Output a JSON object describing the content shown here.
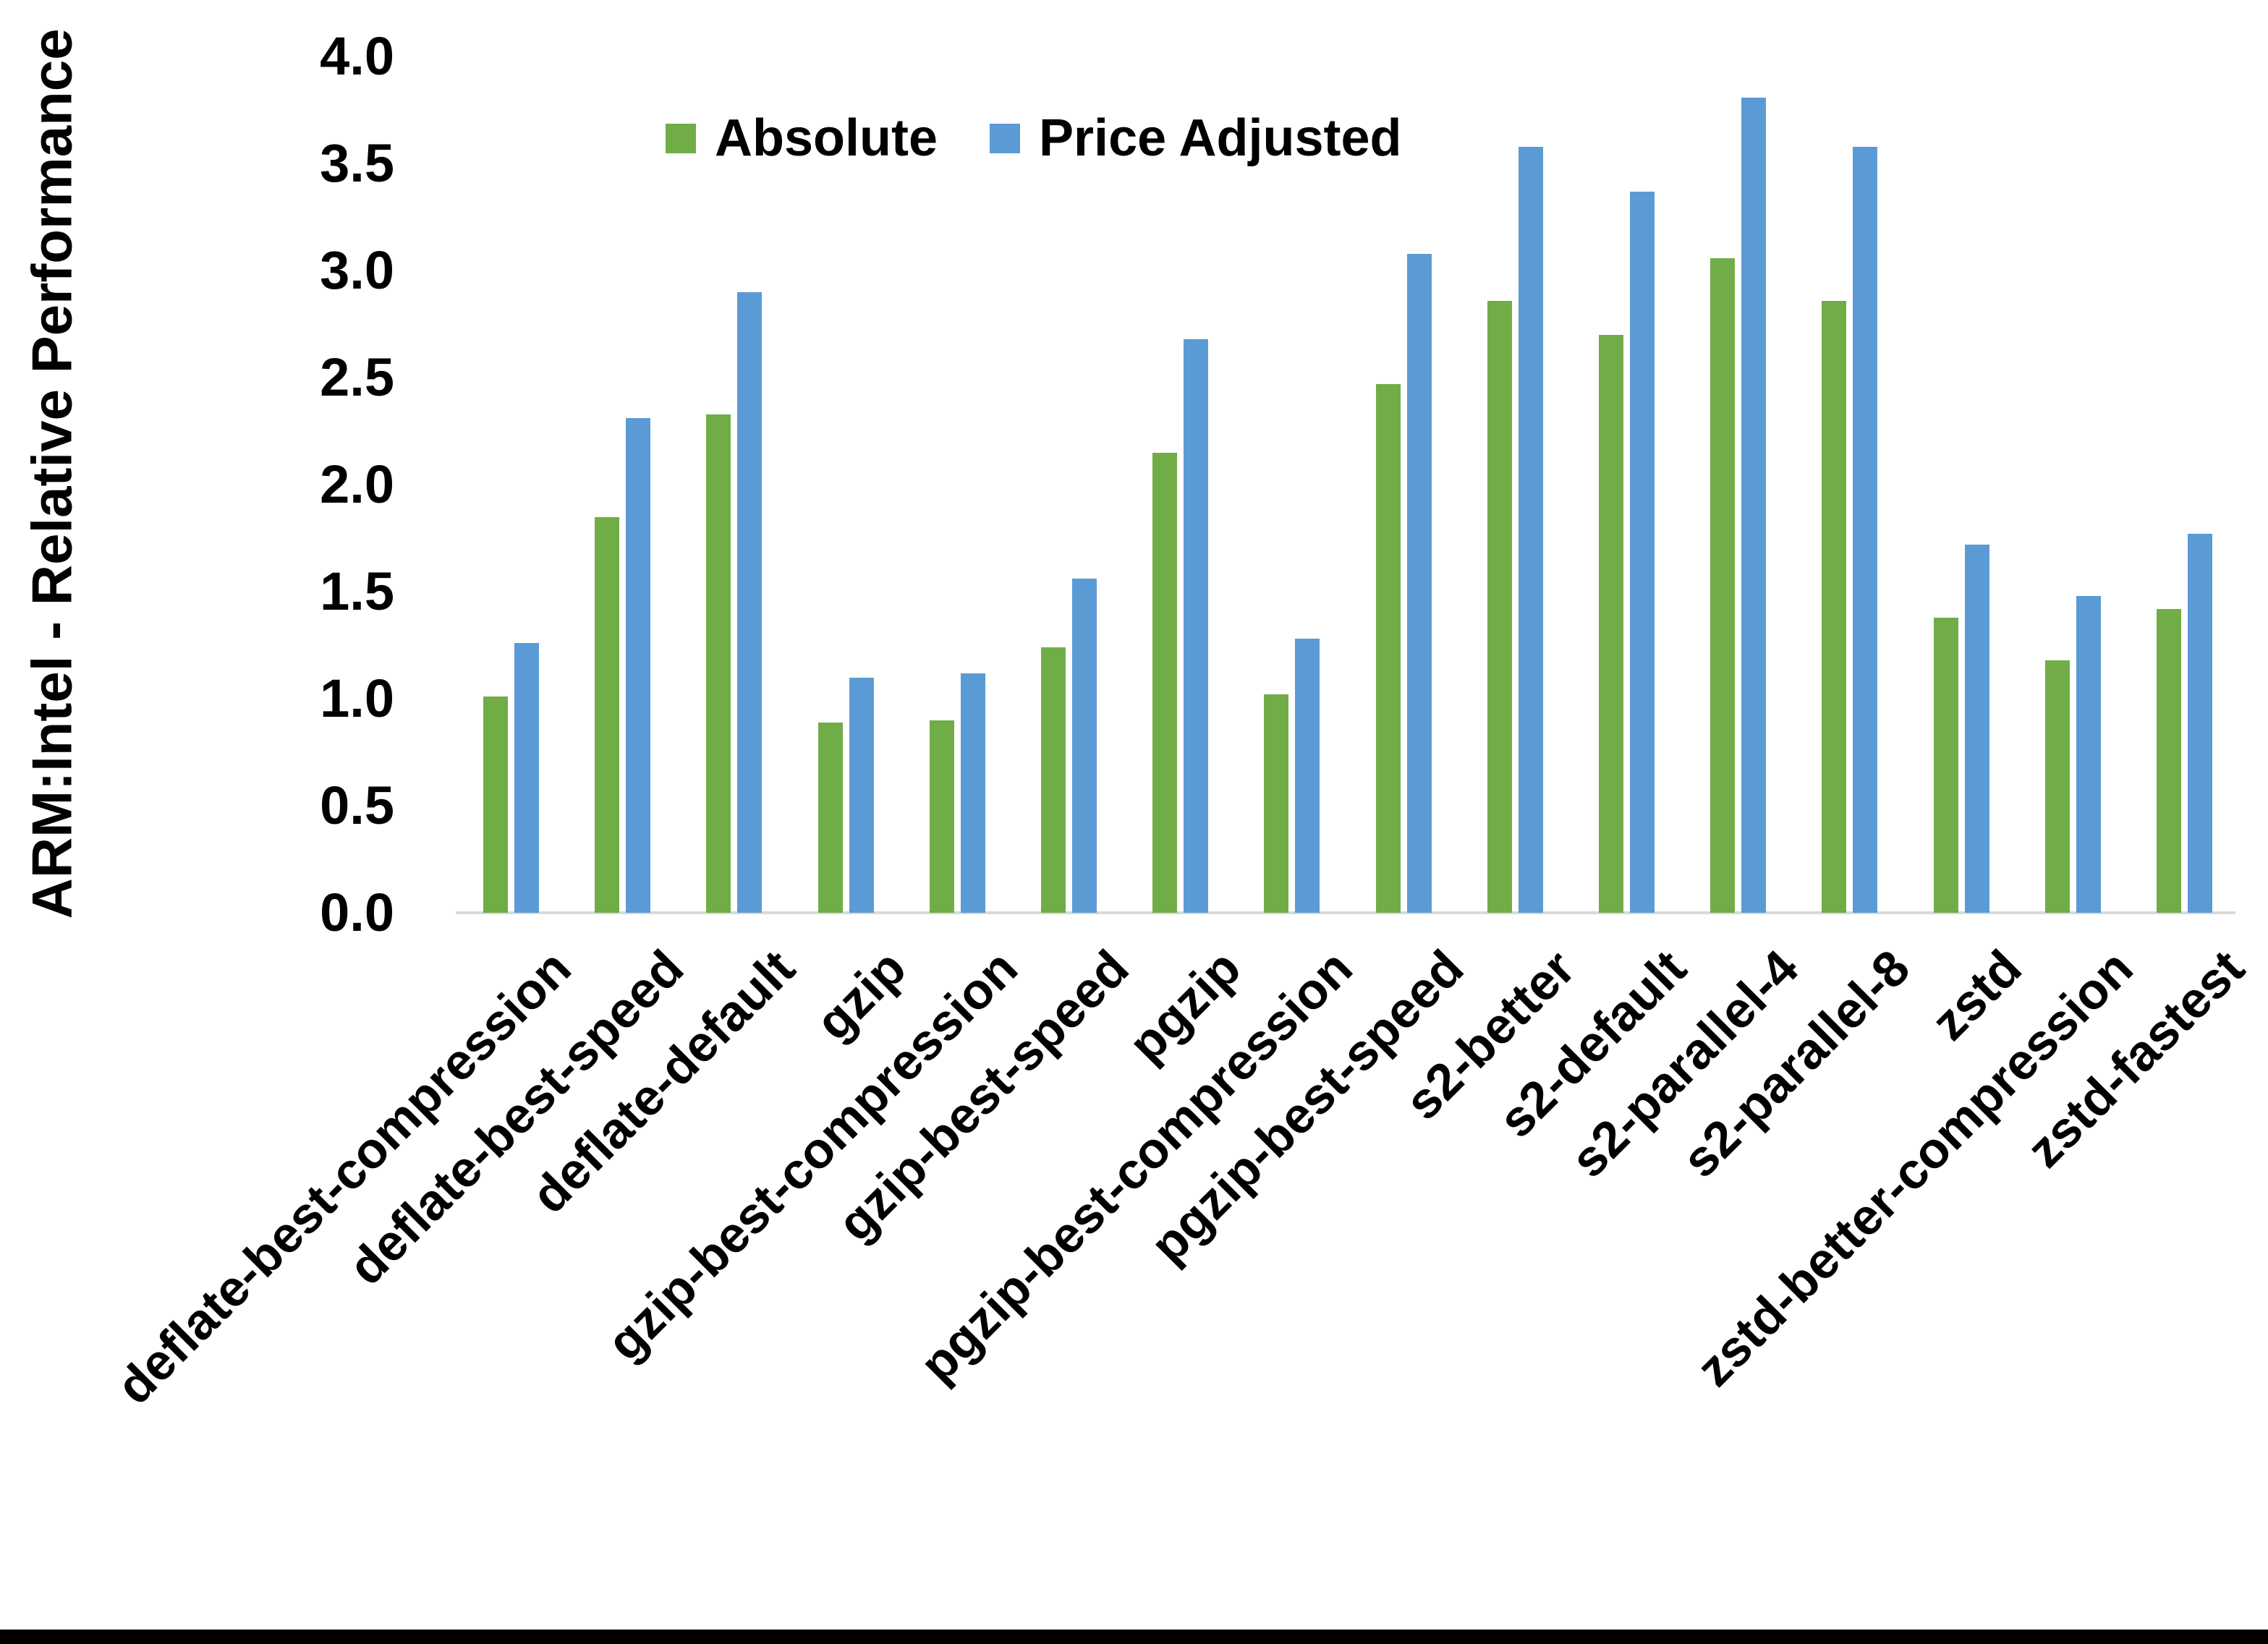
{
  "chart_data": {
    "type": "bar",
    "title": "",
    "ylabel": "ARM:Intel - Relative Performance",
    "xlabel": "",
    "ylim": [
      0.0,
      4.0
    ],
    "ytick_step": 0.5,
    "ytick_labels": [
      "0.0",
      "0.5",
      "1.0",
      "1.5",
      "2.0",
      "2.5",
      "3.0",
      "3.5",
      "4.0"
    ],
    "grid": false,
    "legend_position": "top-center",
    "categories": [
      "deflate-best-compression",
      "deflate-best-speed",
      "deflate-default",
      "gzip",
      "gzip-best-compression",
      "gzip-best-speed",
      "pgzip",
      "pgzip-best-compression",
      "pgzip-best-speed",
      "s2-better",
      "s2-default",
      "s2-parallel-4",
      "s2-parallel-8",
      "zstd",
      "zstd-better-compression",
      "zstd-fastest"
    ],
    "series": [
      {
        "name": "Absolute",
        "color": "#70AD47",
        "values": [
          1.01,
          1.85,
          2.33,
          0.89,
          0.9,
          1.24,
          2.15,
          1.02,
          2.47,
          2.86,
          2.7,
          3.06,
          2.86,
          1.38,
          1.18,
          1.42
        ]
      },
      {
        "name": "Price Adjusted",
        "color": "#5B9BD5",
        "values": [
          1.26,
          2.31,
          2.9,
          1.1,
          1.12,
          1.56,
          2.68,
          1.28,
          3.08,
          3.58,
          3.37,
          3.81,
          3.58,
          1.72,
          1.48,
          1.77
        ]
      }
    ],
    "colors": {
      "axis_line": "#D9D9D9",
      "text": "#000000",
      "background": "#FFFFFF",
      "bottom_border": "#000000"
    }
  }
}
